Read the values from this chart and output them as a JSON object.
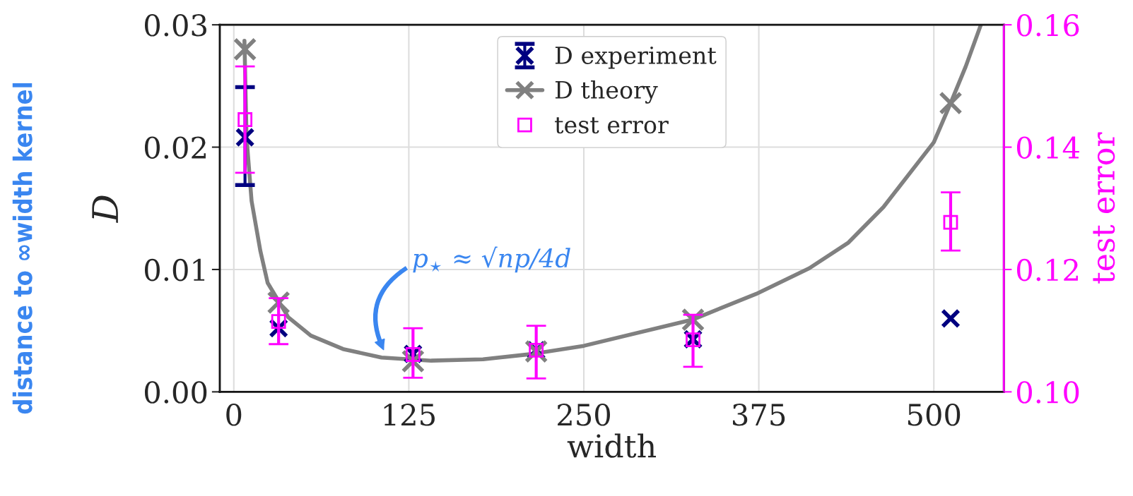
{
  "chart_data": {
    "type": "line",
    "xlabel": "width",
    "ylabel": "D",
    "y2label": "test error",
    "xlim": [
      -10,
      550
    ],
    "xticks": [
      0,
      125,
      250,
      375,
      500
    ],
    "ylim": [
      0,
      0.03
    ],
    "yticks": [
      {
        "value": 0,
        "label": "0.00"
      },
      {
        "value": 0.01,
        "label": "0.01"
      },
      {
        "value": 0.02,
        "label": "0.02"
      },
      {
        "value": 0.03,
        "label": "0.03"
      }
    ],
    "y2lim": [
      0.1,
      0.16
    ],
    "y2ticks": [
      {
        "value": 0.1,
        "label": "0.10"
      },
      {
        "value": 0.12,
        "label": "0.12"
      },
      {
        "value": 0.14,
        "label": "0.14"
      },
      {
        "value": 0.16,
        "label": "0.16"
      }
    ],
    "grid": true,
    "legend": "top",
    "series": [
      {
        "color": "#808080",
        "marker": "none",
        "line_style": "solid",
        "x": [
          7.6,
          9.1,
          12.7,
          19,
          24.2,
          38.9,
          55,
          78,
          105.5,
          141,
          178,
          213.5,
          250,
          327.6,
          373,
          411,
          439,
          464,
          500,
          512,
          522.8,
          533.6
        ],
        "values": [
          0.0287,
          0.0208,
          0.0156,
          0.0115,
          0.0089,
          0.0061,
          0.0046,
          0.0035,
          0.0028,
          0.00255,
          0.00266,
          0.0031,
          0.00376,
          0.0059,
          0.008,
          0.0101,
          0.0122,
          0.0151,
          0.0204,
          0.0236,
          0.0266,
          0.03
        ]
      },
      {
        "name": "D experiment",
        "type": "scatter",
        "color": "#000080",
        "marker": "cross",
        "x": [
          8,
          32,
          128,
          216,
          328,
          512
        ],
        "values": [
          0.0208,
          0.0052,
          0.0031,
          0.0034,
          0.0043,
          0.006
        ],
        "errors": [
          [
            0.0169,
            0.0249
          ],
          null,
          null,
          null,
          null,
          null
        ]
      },
      {
        "name": "D theory",
        "type": "scatter",
        "color": "#808080",
        "marker": "cross",
        "x": [
          8,
          32,
          128,
          216,
          328,
          512
        ],
        "values": [
          0.028,
          0.0073,
          0.0025,
          0.0033,
          0.0059,
          0.0236
        ]
      },
      {
        "name": "test error",
        "type": "scatter",
        "axis": "y2",
        "color": "#ff00ff",
        "marker": "square",
        "x": [
          8,
          32,
          128,
          216,
          328,
          512
        ],
        "values": [
          0.1445,
          0.1115,
          0.1061,
          0.1068,
          0.1085,
          0.1277
        ],
        "errors": [
          [
            0.1358,
            0.1532
          ],
          [
            0.1078,
            0.1153
          ],
          [
            0.1023,
            0.1104
          ],
          [
            0.1022,
            0.1108
          ],
          [
            0.1041,
            0.1126
          ],
          [
            0.1231,
            0.1326
          ]
        ]
      }
    ],
    "annotations": [
      "p$_{⋆}$ ≈ √np/4d",
      "distance to ∞width kernel"
    ]
  }
}
